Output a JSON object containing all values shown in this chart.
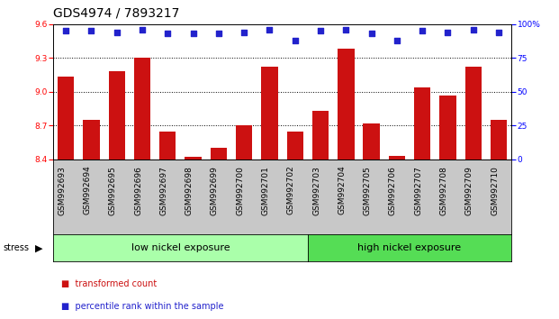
{
  "title": "GDS4974 / 7893217",
  "categories": [
    "GSM992693",
    "GSM992694",
    "GSM992695",
    "GSM992696",
    "GSM992697",
    "GSM992698",
    "GSM992699",
    "GSM992700",
    "GSM992701",
    "GSM992702",
    "GSM992703",
    "GSM992704",
    "GSM992705",
    "GSM992706",
    "GSM992707",
    "GSM992708",
    "GSM992709",
    "GSM992710"
  ],
  "bar_values": [
    9.13,
    8.75,
    9.18,
    9.3,
    8.65,
    8.42,
    8.5,
    8.7,
    9.22,
    8.65,
    8.83,
    9.38,
    8.72,
    8.43,
    9.04,
    8.97,
    9.22,
    8.75
  ],
  "percentile_values": [
    95,
    95,
    94,
    96,
    93,
    93,
    93,
    94,
    96,
    88,
    95,
    96,
    93,
    88,
    95,
    94,
    96,
    94
  ],
  "bar_color": "#cc1111",
  "dot_color": "#2222cc",
  "ylim_left": [
    8.4,
    9.6
  ],
  "ylim_right": [
    0,
    100
  ],
  "yticks_left": [
    8.4,
    8.7,
    9.0,
    9.3,
    9.6
  ],
  "yticks_right": [
    0,
    25,
    50,
    75,
    100
  ],
  "grid_values": [
    8.7,
    9.0,
    9.3
  ],
  "low_label": "low nickel exposure",
  "high_label": "high nickel exposure",
  "low_count": 10,
  "high_count": 8,
  "stress_label": "stress",
  "legend_bar_label": "transformed count",
  "legend_dot_label": "percentile rank within the sample",
  "background_color": "#ffffff",
  "low_group_color": "#aaffaa",
  "high_group_color": "#55dd55",
  "xtick_bg_color": "#c8c8c8",
  "title_fontsize": 10,
  "tick_fontsize": 6.5,
  "group_label_fontsize": 8,
  "legend_fontsize": 7
}
